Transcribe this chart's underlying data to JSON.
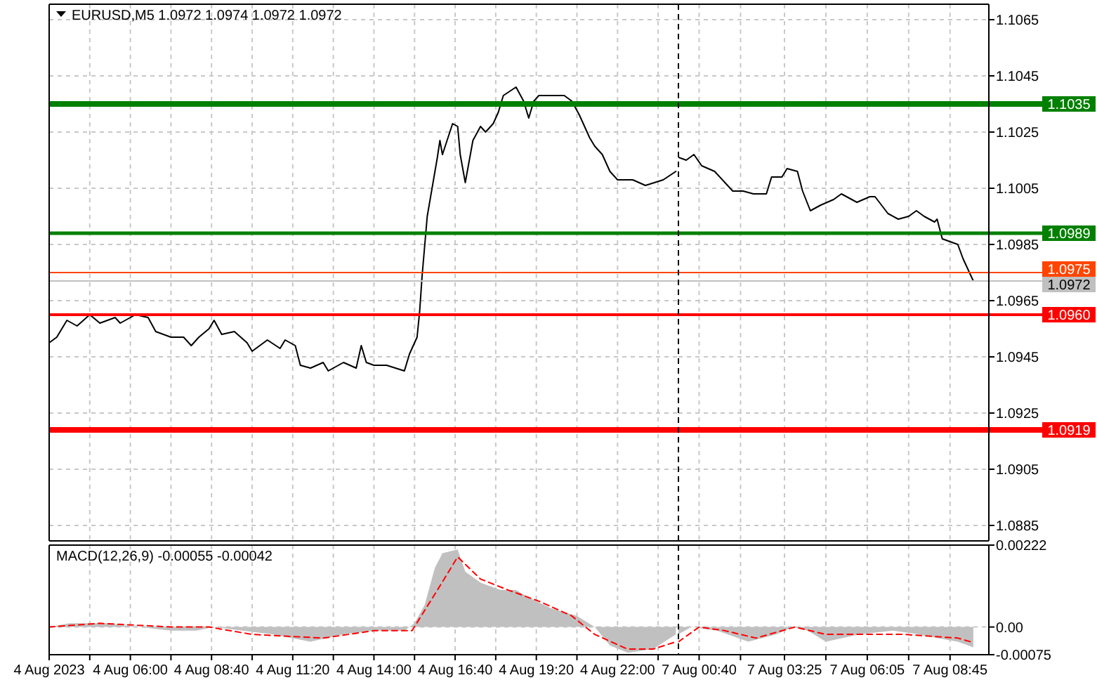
{
  "chart_data": [
    {
      "type": "line",
      "title": "EURUSD,M5 1.0972 1.0974 1.0972 1.0972",
      "series": [
        {
          "color": "#000000",
          "x": [
            "2023-08-04T03:20",
            "2023-08-04T03:35",
            "2023-08-04T03:55",
            "2023-08-04T04:15",
            "2023-08-04T04:40",
            "2023-08-04T05:00",
            "2023-08-04T05:30",
            "2023-08-04T05:40",
            "2023-08-04T06:10",
            "2023-08-04T06:35",
            "2023-08-04T06:50",
            "2023-08-04T07:20",
            "2023-08-04T07:45",
            "2023-08-04T08:00",
            "2023-08-04T08:15",
            "2023-08-04T08:35",
            "2023-08-04T08:45",
            "2023-08-04T09:00",
            "2023-08-04T09:25",
            "2023-08-04T09:50",
            "2023-08-04T10:00",
            "2023-08-04T10:30",
            "2023-08-04T10:55",
            "2023-08-04T11:05",
            "2023-08-04T11:25",
            "2023-08-04T11:35",
            "2023-08-04T11:55",
            "2023-08-04T12:20",
            "2023-08-04T12:30",
            "2023-08-04T13:00",
            "2023-08-04T13:25",
            "2023-08-04T13:35",
            "2023-08-04T13:45",
            "2023-08-04T14:00",
            "2023-08-04T14:25",
            "2023-08-04T15:00",
            "2023-08-04T15:10",
            "2023-08-04T15:25",
            "2023-08-04T15:30",
            "2023-08-04T15:35",
            "2023-08-04T15:45",
            "2023-08-04T16:05",
            "2023-08-04T16:10",
            "2023-08-04T16:15",
            "2023-08-04T16:35",
            "2023-08-04T16:45",
            "2023-08-04T16:50",
            "2023-08-04T17:00",
            "2023-08-04T17:15",
            "2023-08-04T17:30",
            "2023-08-04T17:40",
            "2023-08-04T17:55",
            "2023-08-04T18:05",
            "2023-08-04T18:15",
            "2023-08-04T18:40",
            "2023-08-04T18:55",
            "2023-08-04T19:05",
            "2023-08-04T19:15",
            "2023-08-04T19:25",
            "2023-08-04T19:45",
            "2023-08-04T20:15",
            "2023-08-04T20:30",
            "2023-08-04T20:45",
            "2023-08-04T21:05",
            "2023-08-04T21:15",
            "2023-08-04T21:30",
            "2023-08-04T21:45",
            "2023-08-04T22:00",
            "2023-08-04T22:30",
            "2023-08-04T22:55",
            "2023-08-04T23:30",
            "2023-08-04T23:55"
          ],
          "values": [
            1.095,
            1.0952,
            1.0958,
            1.0956,
            1.096,
            1.0957,
            1.0959,
            1.0957,
            1.096,
            1.0959,
            1.0954,
            1.0952,
            1.0952,
            1.0949,
            1.0952,
            1.0955,
            1.0958,
            1.0953,
            1.0954,
            1.095,
            1.0947,
            1.0951,
            1.0948,
            1.0951,
            1.0949,
            1.0942,
            1.0941,
            1.0943,
            1.094,
            1.0943,
            1.0941,
            1.0949,
            1.0943,
            1.0942,
            1.0942,
            1.094,
            1.0946,
            1.0952,
            1.0961,
            1.0974,
            1.0995,
            1.1016,
            1.1022,
            1.1017,
            1.1028,
            1.1027,
            1.1017,
            1.1007,
            1.1022,
            1.1027,
            1.1025,
            1.1028,
            1.1032,
            1.1038,
            1.1041,
            1.1036,
            1.103,
            1.1036,
            1.1038,
            1.1038,
            1.1038,
            1.1036,
            1.1031,
            1.1023,
            1.102,
            1.1017,
            1.1011,
            1.1008,
            1.1008,
            1.1006,
            1.1008,
            1.1011
          ]
        }
      ],
      "xlim": [
        "2023-08-04T03:20",
        "2023-08-05T00:00"
      ],
      "xticks": [
        {
          "value": "2023-08-04T03:20",
          "label": null
        },
        {
          "value": "2023-08-04T04:40",
          "label": null
        },
        {
          "value": "2023-08-04T06:00",
          "label": null
        },
        {
          "value": "2023-08-04T07:20",
          "label": null
        },
        {
          "value": "2023-08-04T08:40",
          "label": null
        },
        {
          "value": "2023-08-04T10:00",
          "label": null
        },
        {
          "value": "2023-08-04T11:20",
          "label": null
        },
        {
          "value": "2023-08-04T12:40",
          "label": null
        },
        {
          "value": "2023-08-04T14:00",
          "label": null
        },
        {
          "value": "2023-08-04T15:20",
          "label": null
        },
        {
          "value": "2023-08-04T16:40",
          "label": null
        },
        {
          "value": "2023-08-04T18:00",
          "label": null
        },
        {
          "value": "2023-08-04T19:20",
          "label": null
        },
        {
          "value": "2023-08-04T20:40",
          "label": null
        },
        {
          "value": "2023-08-04T22:00",
          "label": null
        },
        {
          "value": "2023-08-04T23:20",
          "label": null
        }
      ],
      "ylim": [
        1.08795,
        1.10705
      ],
      "yticks": [
        1.1065,
        1.1045,
        1.1025,
        1.1005,
        1.0985,
        1.0965,
        1.0945,
        1.0925,
        1.0905,
        1.0885
      ],
      "grid": true,
      "tick_labels": false,
      "ref_lines": [
        {
          "axis": "y",
          "value": 1.1035,
          "color": "#008000"
        },
        {
          "axis": "y",
          "value": 1.0989,
          "color": "#008000"
        },
        {
          "axis": "y",
          "value": 1.0975,
          "color": "#ff4500"
        },
        {
          "axis": "y",
          "value": 1.0972,
          "color": "#c0c0c0"
        },
        {
          "axis": "y",
          "value": 1.096,
          "color": "#ff0000"
        },
        {
          "axis": "y",
          "value": 1.0919,
          "color": "#ff0000"
        }
      ]
    },
    {
      "type": "line",
      "series": [
        {
          "color": "#000000",
          "x": [
            "2023-08-07T00:00",
            "2023-08-07T00:15",
            "2023-08-07T00:30",
            "2023-08-07T00:45",
            "2023-08-07T01:10",
            "2023-08-07T01:30",
            "2023-08-07T01:45",
            "2023-08-07T02:05",
            "2023-08-07T02:25",
            "2023-08-07T02:50",
            "2023-08-07T03:00",
            "2023-08-07T03:20",
            "2023-08-07T03:30",
            "2023-08-07T03:50",
            "2023-08-07T04:00",
            "2023-08-07T04:15",
            "2023-08-07T04:35",
            "2023-08-07T05:00",
            "2023-08-07T05:15",
            "2023-08-07T05:45",
            "2023-08-07T06:10",
            "2023-08-07T06:20",
            "2023-08-07T06:45",
            "2023-08-07T07:05",
            "2023-08-07T07:25",
            "2023-08-07T07:40",
            "2023-08-07T07:55",
            "2023-08-07T08:15",
            "2023-08-07T08:20",
            "2023-08-07T08:30",
            "2023-08-07T08:45",
            "2023-08-07T09:00",
            "2023-08-07T09:10",
            "2023-08-07T09:30"
          ],
          "values": [
            1.1016,
            1.1015,
            1.1017,
            1.1013,
            1.1011,
            1.1007,
            1.1004,
            1.1004,
            1.1003,
            1.1003,
            1.1009,
            1.1009,
            1.1012,
            1.1011,
            1.1004,
            1.0997,
            1.0999,
            1.1001,
            1.1003,
            1.1,
            1.1002,
            1.1002,
            1.0996,
            1.0994,
            1.0995,
            1.0997,
            1.0995,
            1.0993,
            1.0994,
            1.0987,
            1.0986,
            1.0985,
            1.098,
            1.0972
          ]
        }
      ],
      "xlim": [
        "2023-08-07T00:00",
        "2023-08-07T10:00"
      ],
      "xticks": [
        {
          "value": "2023-08-07T00:40",
          "label": null
        },
        {
          "value": "2023-08-07T02:00",
          "label": null
        },
        {
          "value": "2023-08-07T03:25",
          "label": null
        },
        {
          "value": "2023-08-07T04:45",
          "label": null
        },
        {
          "value": "2023-08-07T06:05",
          "label": null
        },
        {
          "value": "2023-08-07T07:25",
          "label": null
        },
        {
          "value": "2023-08-07T08:45",
          "label": null
        }
      ],
      "ylim": [
        1.08795,
        1.10705
      ],
      "yticks": [
        1.1065,
        1.1045,
        1.1025,
        1.1005,
        1.0985,
        1.0965,
        1.0945,
        1.0925,
        1.0905,
        1.0885
      ],
      "grid": true,
      "tick_labels": "y",
      "ref_lines": [
        {
          "axis": "y",
          "value": 1.1035,
          "label": "1.1035",
          "color": "#008000"
        },
        {
          "axis": "y",
          "value": 1.0989,
          "label": "1.0989",
          "color": "#008000"
        },
        {
          "axis": "y",
          "value": 1.0975,
          "label": "1.0975",
          "color": "#ff4500"
        },
        {
          "axis": "y",
          "value": 1.0972,
          "label": "1.0972",
          "color": "#c0c0c0"
        },
        {
          "axis": "y",
          "value": 1.096,
          "label": "1.0960",
          "color": "#ff0000"
        },
        {
          "axis": "y",
          "value": 1.0919,
          "label": "1.0919",
          "color": "#ff0000"
        },
        {
          "axis": "x",
          "value": "2023-08-07T00:00",
          "color": "#000000",
          "line_style": "dashed"
        }
      ]
    },
    {
      "type": "line",
      "title": "MACD(12,26,9) -0.00055 -0.00042",
      "series": [
        {
          "type": "area",
          "color": "#c0c0c0",
          "x": [
            "2023-08-04T03:20",
            "2023-08-04T04:00",
            "2023-08-04T04:40",
            "2023-08-04T05:15",
            "2023-08-04T06:15",
            "2023-08-04T07:20",
            "2023-08-04T08:10",
            "2023-08-04T08:45",
            "2023-08-04T09:40",
            "2023-08-04T10:40",
            "2023-08-04T11:55",
            "2023-08-04T13:00",
            "2023-08-04T14:00",
            "2023-08-04T15:00",
            "2023-08-04T15:20",
            "2023-08-04T15:40",
            "2023-08-04T16:00",
            "2023-08-04T16:15",
            "2023-08-04T16:45",
            "2023-08-04T17:00",
            "2023-08-04T17:30",
            "2023-08-04T18:10",
            "2023-08-04T18:40",
            "2023-08-04T19:05",
            "2023-08-04T19:50",
            "2023-08-04T20:40",
            "2023-08-04T21:15",
            "2023-08-04T21:45",
            "2023-08-04T22:20",
            "2023-08-04T23:10",
            "2023-08-04T23:55"
          ],
          "values": [
            0,
            0.0001,
            0.0001,
            0.0001,
            0,
            -0.0001,
            -0.0001,
            0,
            -0.0001,
            -0.0002,
            -0.0004,
            -0.0002,
            -0.0001,
            -0.0001,
            0.0001,
            0.0006,
            0.0016,
            0.002,
            0.0021,
            0.0015,
            0.0012,
            0.001,
            0.001,
            0.0008,
            0.0005,
            0.0003,
            0,
            -0.0005,
            -0.0007,
            -0.0006,
            -0.0002
          ]
        },
        {
          "color": "#ff0000",
          "line_style": "dashed",
          "x": [
            "2023-08-04T03:20",
            "2023-08-04T05:00",
            "2023-08-04T07:20",
            "2023-08-04T08:35",
            "2023-08-04T10:00",
            "2023-08-04T12:20",
            "2023-08-04T14:00",
            "2023-08-04T15:15",
            "2023-08-04T16:05",
            "2023-08-04T16:45",
            "2023-08-04T17:30",
            "2023-08-04T18:25",
            "2023-08-04T19:25",
            "2023-08-04T20:30",
            "2023-08-04T21:15",
            "2023-08-04T22:20",
            "2023-08-04T23:10",
            "2023-08-04T23:55"
          ],
          "values": [
            0,
            0.0001,
            0,
            0,
            -0.0002,
            -0.0003,
            -0.0001,
            -0.0001,
            0.001,
            0.0019,
            0.0013,
            0.001,
            0.0007,
            0.0003,
            -0.0002,
            -0.0006,
            -0.0006,
            -0.0004
          ]
        }
      ],
      "xlim": [
        "2023-08-04T03:20",
        "2023-08-05T00:00"
      ],
      "xticks": [
        {
          "value": "2023-08-04T03:20",
          "label": "4 Aug 2023"
        },
        {
          "value": "2023-08-04T04:40",
          "label": null
        },
        {
          "value": "2023-08-04T06:00",
          "label": "4 Aug 06:00"
        },
        {
          "value": "2023-08-04T07:20",
          "label": null
        },
        {
          "value": "2023-08-04T08:40",
          "label": "4 Aug 08:40"
        },
        {
          "value": "2023-08-04T10:00",
          "label": null
        },
        {
          "value": "2023-08-04T11:20",
          "label": "4 Aug 11:20"
        },
        {
          "value": "2023-08-04T12:40",
          "label": null
        },
        {
          "value": "2023-08-04T14:00",
          "label": "4 Aug 14:00"
        },
        {
          "value": "2023-08-04T15:20",
          "label": null
        },
        {
          "value": "2023-08-04T16:40",
          "label": "4 Aug 16:40"
        },
        {
          "value": "2023-08-04T18:00",
          "label": null
        },
        {
          "value": "2023-08-04T19:20",
          "label": "4 Aug 19:20"
        },
        {
          "value": "2023-08-04T20:40",
          "label": null
        },
        {
          "value": "2023-08-04T22:00",
          "label": "4 Aug 22:00"
        },
        {
          "value": "2023-08-04T23:20",
          "label": null
        }
      ],
      "ylim": [
        -0.00075,
        0.00222
      ],
      "yticks": [
        {
          "value": 0.00222,
          "label": null
        },
        {
          "value": 0,
          "label": null
        },
        {
          "value": -0.00075,
          "label": null
        }
      ],
      "grid": true,
      "tick_labels": "x"
    },
    {
      "type": "line",
      "series": [
        {
          "type": "area",
          "color": "#c0c0c0",
          "x": [
            "2023-08-07T00:00",
            "2023-08-07T00:25",
            "2023-08-07T01:15",
            "2023-08-07T02:15",
            "2023-08-07T03:10",
            "2023-08-07T03:40",
            "2023-08-07T04:10",
            "2023-08-07T04:45",
            "2023-08-07T05:50",
            "2023-08-07T06:55",
            "2023-08-07T07:45",
            "2023-08-07T08:20",
            "2023-08-07T09:00",
            "2023-08-07T09:30"
          ],
          "values": [
            -0.0002,
            0,
            -0.0001,
            -0.0004,
            -0.0002,
            0,
            -0.0001,
            -0.0004,
            -0.0002,
            -0.0001,
            -0.0002,
            -0.0003,
            -0.0004,
            -0.00055
          ]
        },
        {
          "color": "#ff0000",
          "line_style": "dashed",
          "x": [
            "2023-08-07T00:00",
            "2023-08-07T00:40",
            "2023-08-07T01:30",
            "2023-08-07T02:30",
            "2023-08-07T03:45",
            "2023-08-07T04:45",
            "2023-08-07T06:00",
            "2023-08-07T07:15",
            "2023-08-07T09:00",
            "2023-08-07T09:30"
          ],
          "values": [
            -0.0004,
            0,
            -0.0001,
            -0.0003,
            0,
            -0.0002,
            -0.0002,
            -0.0002,
            -0.0003,
            -0.00042
          ]
        }
      ],
      "xlim": [
        "2023-08-07T00:00",
        "2023-08-07T10:00"
      ],
      "xticks": [
        {
          "value": "2023-08-07T00:40",
          "label": "7 Aug 00:40"
        },
        {
          "value": "2023-08-07T02:00",
          "label": null
        },
        {
          "value": "2023-08-07T03:25",
          "label": "7 Aug 03:25"
        },
        {
          "value": "2023-08-07T04:45",
          "label": null
        },
        {
          "value": "2023-08-07T06:05",
          "label": "7 Aug 06:05"
        },
        {
          "value": "2023-08-07T07:25",
          "label": null
        },
        {
          "value": "2023-08-07T08:45",
          "label": "7 Aug 08:45"
        }
      ],
      "ylim": [
        -0.00075,
        0.00222
      ],
      "yticks": [
        0.00222,
        {
          "value": 0,
          "label": "0.00"
        },
        -0.00075
      ],
      "grid": true,
      "ref_lines": [
        {
          "axis": "x",
          "value": "2023-08-07T00:00",
          "color": "#000000",
          "line_style": "dashed"
        }
      ]
    }
  ]
}
